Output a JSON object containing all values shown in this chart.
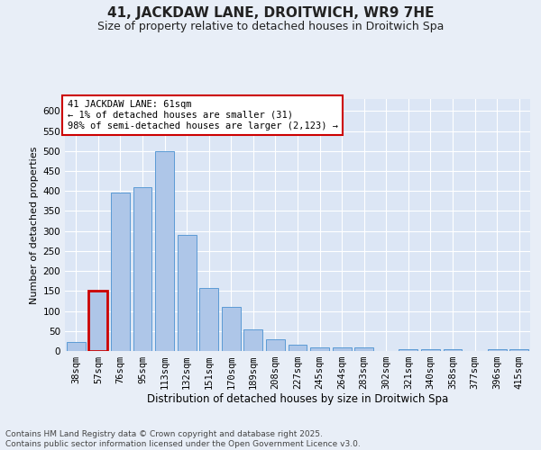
{
  "title1": "41, JACKDAW LANE, DROITWICH, WR9 7HE",
  "title2": "Size of property relative to detached houses in Droitwich Spa",
  "xlabel": "Distribution of detached houses by size in Droitwich Spa",
  "ylabel": "Number of detached properties",
  "categories": [
    "38sqm",
    "57sqm",
    "76sqm",
    "95sqm",
    "113sqm",
    "132sqm",
    "151sqm",
    "170sqm",
    "189sqm",
    "208sqm",
    "227sqm",
    "245sqm",
    "264sqm",
    "283sqm",
    "302sqm",
    "321sqm",
    "340sqm",
    "358sqm",
    "377sqm",
    "396sqm",
    "415sqm"
  ],
  "values": [
    22,
    150,
    395,
    410,
    500,
    290,
    158,
    110,
    55,
    30,
    15,
    10,
    8,
    10,
    0,
    5,
    5,
    5,
    0,
    5,
    5
  ],
  "bar_color": "#aec6e8",
  "bar_edge_color": "#5b9bd5",
  "highlight_bar_index": 1,
  "highlight_edge_color": "#cc0000",
  "ylim": [
    0,
    630
  ],
  "yticks": [
    0,
    50,
    100,
    150,
    200,
    250,
    300,
    350,
    400,
    450,
    500,
    550,
    600
  ],
  "annotation_text": "41 JACKDAW LANE: 61sqm\n← 1% of detached houses are smaller (31)\n98% of semi-detached houses are larger (2,123) →",
  "annotation_box_color": "#ffffff",
  "annotation_edge_color": "#cc0000",
  "bg_color": "#e8eef7",
  "plot_bg_color": "#dce6f5",
  "footer_text": "Contains HM Land Registry data © Crown copyright and database right 2025.\nContains public sector information licensed under the Open Government Licence v3.0.",
  "title1_fontsize": 11,
  "title2_fontsize": 9,
  "xlabel_fontsize": 8.5,
  "ylabel_fontsize": 8,
  "tick_fontsize": 7.5,
  "annotation_fontsize": 7.5,
  "footer_fontsize": 6.5
}
